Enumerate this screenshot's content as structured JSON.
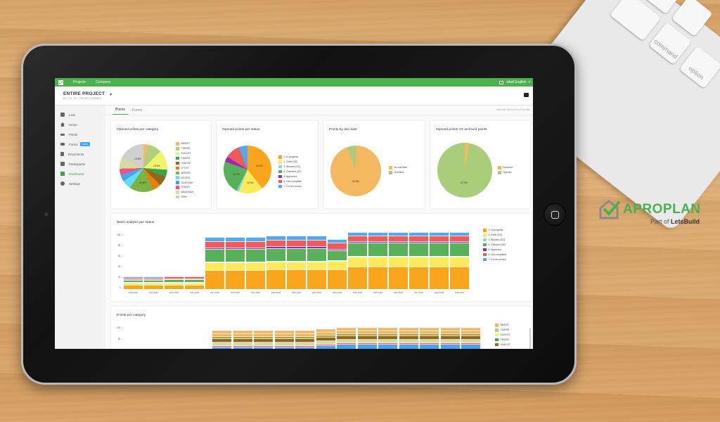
{
  "topbar": {
    "nav": [
      "Projects",
      "Company"
    ],
    "user_label": "wlad English",
    "colors": {
      "green": "#4caf50"
    }
  },
  "header": {
    "title": "ENTIRE PROJECT",
    "subtitle": "02 - PS - 02 - PROJECT SAMPLE"
  },
  "sidebar": {
    "items": [
      {
        "label": "Lists",
        "icon": "list-icon"
      },
      {
        "label": "Home",
        "icon": "home-icon"
      },
      {
        "label": "Points",
        "icon": "points-icon"
      },
      {
        "label": "Forms",
        "icon": "forms-icon",
        "badge": "BETA"
      },
      {
        "label": "Documents",
        "icon": "document-icon"
      },
      {
        "label": "Participants",
        "icon": "participants-icon"
      },
      {
        "label": "Dashboard",
        "icon": "dashboard-icon",
        "active": true
      },
      {
        "label": "Settings",
        "icon": "gear-icon"
      }
    ]
  },
  "tabs": [
    {
      "label": "Points",
      "active": true
    },
    {
      "label": "Forms",
      "active": false
    }
  ],
  "refresh_note": "automatic refresh every 5 minutes",
  "cards": {
    "category": {
      "title": "Opened points per category"
    },
    "status": {
      "title": "Opened points per status"
    },
    "due": {
      "title": "Points by due date"
    },
    "archived": {
      "title": "Opened points VS archived points"
    },
    "wave": {
      "title": "Wave analysis per status"
    },
    "per_category": {
      "title": "Points per category"
    }
  },
  "brand": {
    "name": "APROPLAN",
    "tagline_prefix": "Part of",
    "tagline_brand": "LetsBuild"
  },
  "keyboard": {
    "keys": [
      "command",
      "option"
    ]
  },
  "chart_data": [
    {
      "type": "pie",
      "title": "Opened points per category",
      "categories": [
        "BMS/ST",
        "CNS/RS",
        "ELEC/ST",
        "FNS/RS",
        "HVAC/ST",
        "LFT/ST",
        "MRE/RS",
        "RNT/RS",
        "SCAF/S&H",
        "STM/ST",
        "WAAH/S&H",
        "Other"
      ],
      "values": [
        3.0,
        9.5,
        13.6,
        5.0,
        6.5,
        5.5,
        16.5,
        6.0,
        5.0,
        4.0,
        7.6,
        13.8
      ],
      "colors": [
        "#f6b860",
        "#aed17e",
        "#eef56a",
        "#3da34a",
        "#8b6a1f",
        "#ef7d0a",
        "#7cb342",
        "#5ee0f7",
        "#47a5ef",
        "#f2507f",
        "#d6dca0",
        "#cfcfcf"
      ],
      "labels_shown": {
        "ELEC/ST": "13.6%",
        "MRE/RS": "16.5%",
        "Other": "13.8%"
      }
    },
    {
      "type": "pie",
      "title": "Opened points per status",
      "categories": [
        "1. In progress",
        "2. Done (SC)",
        "3. Blocked (SC)",
        "4. Checked (SC)",
        "5. Approved",
        "6. Non compliant",
        "7. For the record"
      ],
      "values": [
        39.4,
        16.5,
        1.6,
        22.9,
        3.6,
        10.0,
        6.0
      ],
      "colors": [
        "#f9a51d",
        "#fdea5b",
        "#7fdde9",
        "#58b05a",
        "#9c27b0",
        "#ef5a5a",
        "#53a8f2"
      ],
      "labels_shown": {
        "1. In progress": "39.4%",
        "2. Done (SC)": "16.5%",
        "4. Checked (SC)": "22.9%"
      }
    },
    {
      "type": "pie",
      "title": "Points by due date",
      "categories": [
        "No due date",
        "Overtime"
      ],
      "values": [
        94.5,
        5.5
      ],
      "colors": [
        "#f4b860",
        "#a9cd7a"
      ],
      "labels_shown": {
        "No due date": "94.5%"
      }
    },
    {
      "type": "pie",
      "title": "Opened points VS archived points",
      "categories": [
        "Archived",
        "Opened"
      ],
      "values": [
        2.7,
        97.3
      ],
      "colors": [
        "#f4b860",
        "#a9cd7a"
      ],
      "labels_shown": {
        "Opened": "97.3%"
      }
    },
    {
      "type": "bar",
      "stacked": true,
      "title": "Wave analysis per status",
      "categories": [
        "W13-2018",
        "W14-2018",
        "W15-2018",
        "W16-2018",
        "W17-2018",
        "W18-2018",
        "W19-2018",
        "W20-2018",
        "W21-2018",
        "W22-2018",
        "W23-2018",
        "W24-2018",
        "W25-2018",
        "W26-2018",
        "W27-2018",
        "W28-2018",
        "W29-2018"
      ],
      "ylim": [
        0,
        100
      ],
      "yticks": [
        0,
        20,
        40,
        60,
        80,
        100
      ],
      "series": [
        {
          "name": "1. In progress",
          "color": "#f9a51d",
          "values": [
            8,
            8,
            8,
            8,
            36,
            36,
            36,
            37,
            37,
            37,
            38,
            43,
            43,
            43,
            43,
            43,
            43
          ]
        },
        {
          "name": "2. Done (SC)",
          "color": "#fdea5b",
          "values": [
            4,
            4,
            4,
            4,
            15,
            15,
            15,
            15,
            15,
            15,
            16,
            18,
            18,
            18,
            18,
            18,
            18
          ]
        },
        {
          "name": "3. Blocked (SC)",
          "color": "#7fdde9",
          "values": [
            0.5,
            0.5,
            0.5,
            0.5,
            1,
            1,
            1,
            1,
            1,
            1,
            1,
            2,
            2,
            2,
            2,
            2,
            2
          ]
        },
        {
          "name": "4. Checked (SC)",
          "color": "#58b05a",
          "values": [
            4,
            4,
            6,
            6,
            24,
            24,
            24,
            24,
            24,
            24,
            18,
            25,
            25,
            25,
            25,
            25,
            25
          ]
        },
        {
          "name": "5. Approved",
          "color": "#9c27b0",
          "values": [
            1,
            1,
            1,
            1,
            3,
            3,
            3,
            4,
            4,
            4,
            3,
            3,
            3,
            3,
            3,
            3,
            3
          ]
        },
        {
          "name": "6. Non compliant",
          "color": "#ef5a5a",
          "values": [
            3,
            3,
            3,
            3,
            12,
            12,
            12,
            12,
            12,
            12,
            12,
            11,
            11,
            11,
            11,
            11,
            11
          ]
        },
        {
          "name": "7. For the record",
          "color": "#53a8f2",
          "values": [
            2,
            2,
            2,
            2,
            8,
            8,
            8,
            8,
            8,
            8,
            7,
            6,
            6,
            6,
            6,
            6,
            6
          ]
        }
      ],
      "legend_position": "right"
    },
    {
      "type": "bar",
      "stacked": true,
      "title": "Points per category",
      "yticks_visible": [
        80,
        100
      ],
      "legend_visible": [
        "BMS/ST",
        "CNS/RS",
        "ELEC/ST",
        "FNS/RS",
        "HVAC/ST"
      ],
      "legend_colors": [
        "#f6b860",
        "#aed17e",
        "#eef56a",
        "#3da34a",
        "#8b6a1f"
      ],
      "note": "partially visible (cut off at bottom of screen)"
    }
  ]
}
